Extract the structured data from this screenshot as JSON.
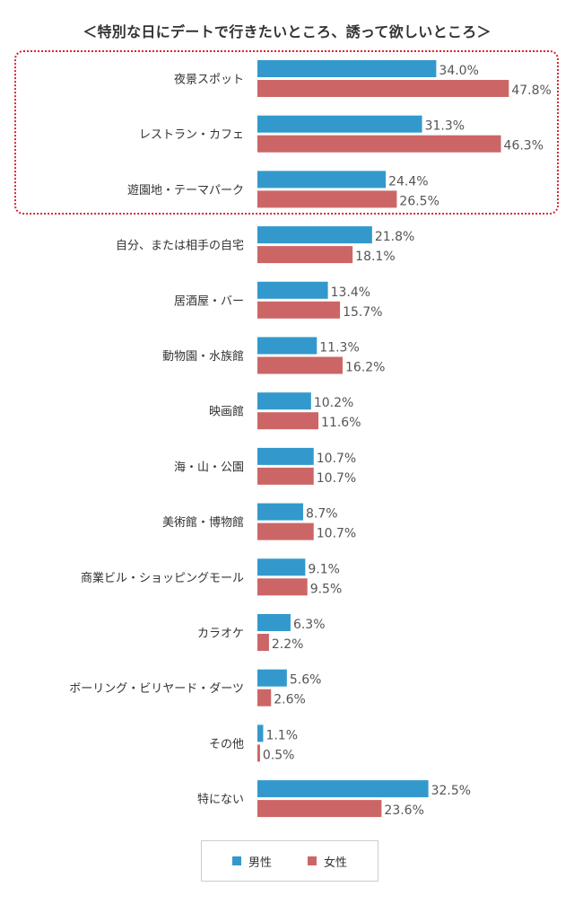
{
  "title": "＜特別な日にデートで行きたいところ、誘って欲しいところ＞",
  "colors": {
    "male": "#3399cc",
    "female": "#cc6666",
    "highlight": "#d7272f"
  },
  "chart_data": {
    "type": "bar",
    "orientation": "horizontal",
    "categories": [
      "夜景スポット",
      "レストラン・カフェ",
      "遊園地・テーマパーク",
      "自分、または相手の自宅",
      "居酒屋・バー",
      "動物園・水族館",
      "映画館",
      "海・山・公園",
      "美術館・博物館",
      "商業ビル・ショッピングモール",
      "カラオケ",
      "ボーリング・ビリヤード・ダーツ",
      "その他",
      "特にない"
    ],
    "series": [
      {
        "name": "男性",
        "values": [
          34.0,
          31.3,
          24.4,
          21.8,
          13.4,
          11.3,
          10.2,
          10.7,
          8.7,
          9.1,
          6.3,
          5.6,
          1.1,
          32.5
        ]
      },
      {
        "name": "女性",
        "values": [
          47.8,
          46.3,
          26.5,
          18.1,
          15.7,
          16.2,
          11.6,
          10.7,
          10.7,
          9.5,
          2.2,
          2.6,
          0.5,
          23.6
        ]
      }
    ],
    "value_suffix": "%",
    "highlighted_categories": [
      "夜景スポット",
      "レストラン・カフェ",
      "遊園地・テーマパーク"
    ],
    "legend_position": "bottom",
    "grid": false
  }
}
